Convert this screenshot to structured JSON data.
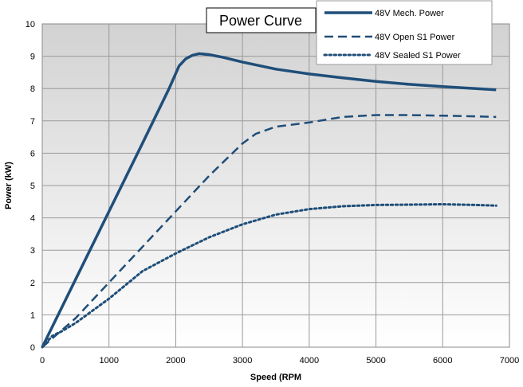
{
  "chart_data": {
    "type": "line",
    "title": "Power Curve",
    "xlabel": "Speed (RPM",
    "ylabel": "Power (kW)",
    "xlim": [
      0,
      7000
    ],
    "ylim": [
      0,
      10
    ],
    "xticks": [
      0,
      1000,
      2000,
      3000,
      4000,
      5000,
      6000,
      7000
    ],
    "yticks": [
      0,
      1,
      2,
      3,
      4,
      5,
      6,
      7,
      8,
      9,
      10
    ],
    "grid": true,
    "legend_position": "top-right",
    "colors": {
      "series": "#1f4e79",
      "plot_bg_top": "#d4d4d4",
      "plot_bg_bottom": "#ffffff",
      "grid": "#9a9a9a"
    },
    "series": [
      {
        "name": "48V Mech. Power",
        "style": "solid",
        "x": [
          0,
          500,
          1000,
          1500,
          1900,
          2050,
          2150,
          2250,
          2350,
          2500,
          2700,
          3000,
          3500,
          4000,
          4500,
          5000,
          5500,
          6000,
          6500,
          6800
        ],
        "y": [
          0,
          2.1,
          4.2,
          6.3,
          8.0,
          8.7,
          8.92,
          9.03,
          9.08,
          9.05,
          8.97,
          8.82,
          8.6,
          8.45,
          8.33,
          8.22,
          8.13,
          8.06,
          8.0,
          7.96
        ]
      },
      {
        "name": "48V Open S1 Power",
        "style": "dashed",
        "x": [
          0,
          500,
          1000,
          1500,
          2000,
          2500,
          3000,
          3200,
          3500,
          4000,
          4500,
          5000,
          5500,
          6000,
          6500,
          6800
        ],
        "y": [
          0,
          0.9,
          2.0,
          3.1,
          4.2,
          5.3,
          6.3,
          6.6,
          6.82,
          6.95,
          7.12,
          7.18,
          7.18,
          7.16,
          7.14,
          7.12
        ]
      },
      {
        "name": "48V Sealed S1 Power",
        "style": "dotted",
        "x": [
          0,
          150,
          300,
          500,
          1000,
          1500,
          2000,
          2500,
          3000,
          3500,
          4000,
          4500,
          5000,
          5500,
          6000,
          6500,
          6800
        ],
        "y": [
          0,
          0.35,
          0.5,
          0.75,
          1.5,
          2.35,
          2.9,
          3.4,
          3.8,
          4.1,
          4.27,
          4.36,
          4.4,
          4.41,
          4.42,
          4.4,
          4.38
        ]
      }
    ]
  }
}
